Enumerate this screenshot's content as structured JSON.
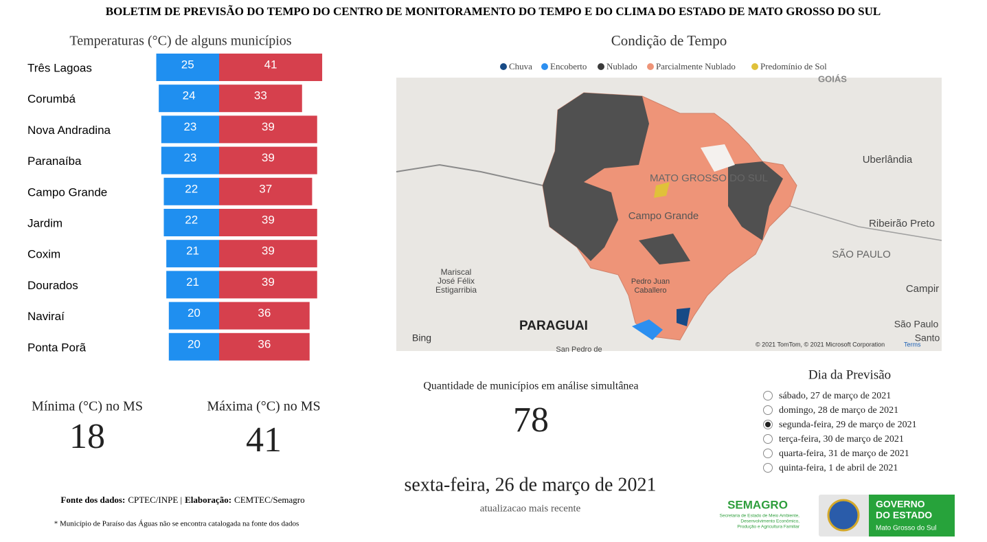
{
  "header": {
    "title": "BOLETIM DE PREVISÃO DO TEMPO DO CENTRO DE MONITORAMENTO DO TEMPO E DO CLIMA DO ESTADO DE MATO GROSSO DO SUL"
  },
  "temperature_chart": {
    "type": "bar",
    "title": "Temperaturas (°C) de alguns municípios",
    "categories": [
      "Três Lagoas",
      "Corumbá",
      "Nova Andradina",
      "Paranaíba",
      "Campo Grande",
      "Jardim",
      "Coxim",
      "Dourados",
      "Naviraí",
      "Ponta Porã"
    ],
    "min_values": [
      25,
      24,
      23,
      23,
      22,
      22,
      21,
      21,
      20,
      20
    ],
    "max_values": [
      41,
      33,
      39,
      39,
      37,
      39,
      39,
      39,
      36,
      36
    ],
    "min_color": "#1f8ff0",
    "max_color": "#d6404d"
  },
  "map": {
    "title": "Condição de Tempo",
    "legend": [
      {
        "name": "Chuva",
        "color": "#174a86"
      },
      {
        "name": "Encoberto",
        "color": "#2c8ff0"
      },
      {
        "name": "Nublado",
        "color": "#3a3a3a"
      },
      {
        "name": "Parcialmente Nublado",
        "color": "#ee9478"
      },
      {
        "name": "Predomínio de Sol",
        "color": "#e0c13a"
      }
    ],
    "labels": [
      "GOIÁS",
      "MATO GROSSO DO SUL",
      "Campo Grande",
      "Uberlândia",
      "Ribeirão Preto",
      "SÃO PAULO",
      "Campir",
      "São Paulo",
      "Santo",
      "Mariscal",
      "José Félix",
      "Estigarribia",
      "PARAGUAI",
      "Pedro Juan",
      "Caballero",
      "San Pedro de"
    ],
    "bing": "Bing",
    "attribution": "© 2021 TomTom, © 2021 Microsoft Corporation",
    "terms": "Terms"
  },
  "stats": {
    "min_label": "Mínima (°C) no MS",
    "min_value": 18,
    "max_label": "Máxima (°C) no MS",
    "max_value": 41,
    "count_label": "Quantidade de municípios em análise simultânea",
    "count_value": 78
  },
  "update": {
    "date": "sexta-feira, 26 de março de 2021",
    "caption": "atualizacao mais recente"
  },
  "forecast": {
    "title": "Dia da Previsão",
    "options": [
      "sábado, 27 de março de 2021",
      "domingo, 28 de março de 2021",
      "segunda-feira, 29 de março de 2021",
      "terça-feira, 30 de março de 2021",
      "quarta-feira, 31 de março de 2021",
      "quinta-feira, 1 de abril de 2021"
    ],
    "selected": 2
  },
  "footer": {
    "source_label": "Fonte dos dados:",
    "source": "CPTEC/INPE |",
    "elab_label": "Elaboração:",
    "elab": "CEMTEC/Semagro",
    "note": "* Município de Paraíso das Águas não se encontra catalogada na fonte dos dados"
  },
  "logos": {
    "semagro": "SEMAGRO",
    "semagro_sub": [
      "Secretaria de Estado de Meio Ambiente,",
      "Desenvolvimento Econômico,",
      "Produção e Agricultura Familiar"
    ],
    "gov": [
      "GOVERNO",
      "DO ESTADO"
    ],
    "gov_sub": "Mato Grosso do Sul"
  }
}
